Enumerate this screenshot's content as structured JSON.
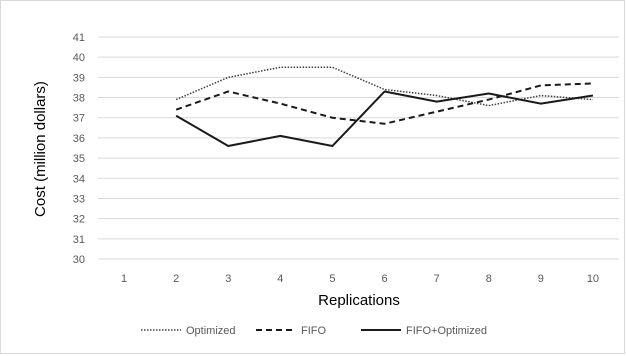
{
  "chart_data": {
    "type": "line",
    "title": "",
    "xlabel": "Replications",
    "ylabel": "Cost (million dollars)",
    "categories": [
      "1",
      "2",
      "3",
      "4",
      "5",
      "6",
      "7",
      "8",
      "9",
      "10"
    ],
    "ylim": [
      30,
      41
    ],
    "yticks": [
      "30",
      "31",
      "32",
      "33",
      "34",
      "35",
      "36",
      "37",
      "38",
      "39",
      "40",
      "41"
    ],
    "grid": "horizontal",
    "legend_position": "bottom",
    "series": [
      {
        "name": "Optimized",
        "style": "dotted",
        "color": "#404040",
        "values": [
          null,
          37.9,
          39.0,
          39.5,
          39.5,
          38.4,
          38.1,
          37.6,
          38.1,
          37.9
        ]
      },
      {
        "name": "FIFO",
        "style": "dashed",
        "color": "#1a1a1a",
        "values": [
          null,
          37.4,
          38.3,
          37.7,
          37.0,
          36.7,
          37.3,
          37.9,
          38.6,
          38.7
        ]
      },
      {
        "name": "FIFO+Optimized",
        "style": "solid",
        "color": "#1a1a1a",
        "values": [
          null,
          37.1,
          35.6,
          36.1,
          35.6,
          38.3,
          37.8,
          38.2,
          37.7,
          38.1
        ]
      }
    ]
  }
}
